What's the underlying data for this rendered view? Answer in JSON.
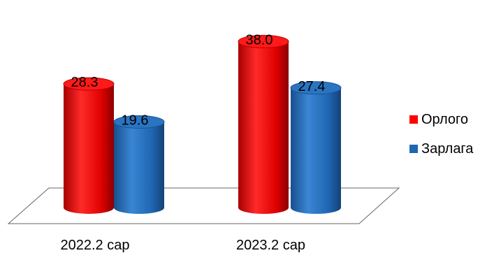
{
  "chart_data": {
    "type": "bar",
    "style": "3d-cylinder",
    "categories": [
      "2022.2 сар",
      "2023.2 сар"
    ],
    "series": [
      {
        "name": "Орлого",
        "values": [
          28.3,
          38.0
        ],
        "color": "#ff0000"
      },
      {
        "name": "Зарлага",
        "values": [
          19.6,
          27.4
        ],
        "color": "#1f66b3"
      }
    ],
    "data_labels": [
      [
        "28.3",
        "38.0"
      ],
      [
        "19.6",
        "27.4"
      ]
    ],
    "ylim": [
      0,
      40
    ],
    "grid": false,
    "legend_position": "right"
  }
}
